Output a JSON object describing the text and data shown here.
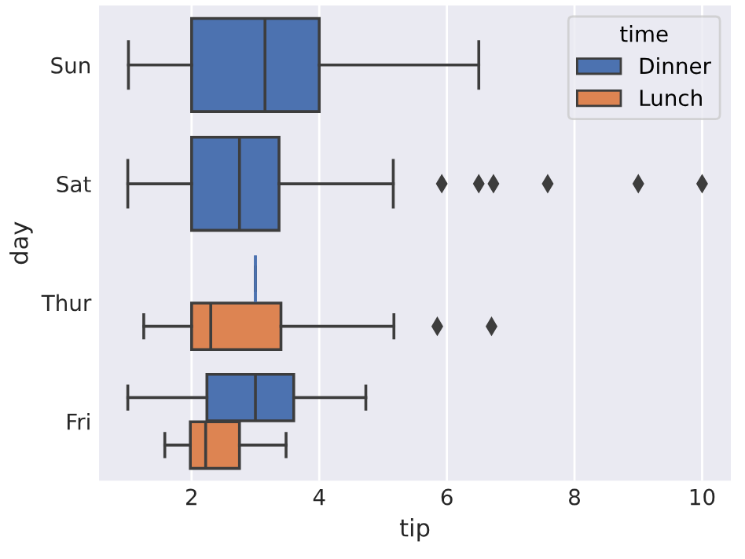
{
  "chart_data": {
    "type": "box",
    "orientation": "horizontal",
    "xlabel": "tip",
    "ylabel": "day",
    "legend_title": "time",
    "categories": [
      "Sun",
      "Sat",
      "Thur",
      "Fri"
    ],
    "series": [
      {
        "name": "Dinner",
        "color": "#4c72b0",
        "boxes": [
          {
            "low": 1.01,
            "q1": 2.0,
            "median": 3.15,
            "q3": 4.0,
            "high": 6.5
          },
          {
            "low": 1.0,
            "q1": 2.0,
            "median": 2.75,
            "q3": 3.37,
            "high": 5.16,
            "outliers": [
              5.92,
              6.5,
              6.73,
              7.58,
              9.0,
              10.0
            ]
          },
          {
            "low": 3.0,
            "q1": 3.0,
            "median": 3.0,
            "q3": 3.0,
            "high": 3.0
          },
          {
            "low": 1.0,
            "q1": 2.24,
            "median": 3.0,
            "q3": 3.6,
            "high": 4.73
          }
        ]
      },
      {
        "name": "Lunch",
        "color": "#dd8452",
        "boxes": [
          null,
          null,
          {
            "low": 1.25,
            "q1": 2.0,
            "median": 2.3,
            "q3": 3.4,
            "high": 5.17,
            "outliers": [
              5.85,
              6.7
            ]
          },
          {
            "low": 1.58,
            "q1": 1.98,
            "median": 2.22,
            "q3": 2.75,
            "high": 3.48
          }
        ]
      }
    ],
    "xlim": [
      0.55,
      10.45
    ],
    "xticks": [
      2,
      4,
      6,
      8,
      10
    ],
    "grid": "x",
    "legend": "top right",
    "marker": "diamond"
  }
}
